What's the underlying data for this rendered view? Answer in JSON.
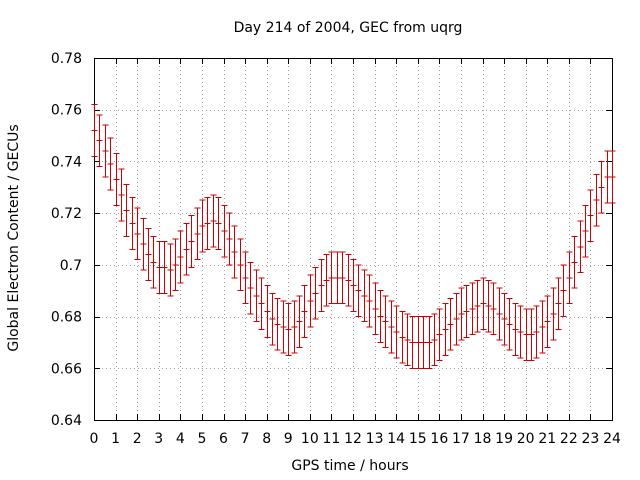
{
  "chart_data": {
    "type": "line",
    "title": "Day 214 of 2004, GEC from uqrg",
    "xlabel": "GPS time / hours",
    "ylabel": "Global Electron Content / GECUs",
    "xlim": [
      0,
      24
    ],
    "ylim": [
      0.64,
      0.78
    ],
    "x_ticks": [
      "0",
      "1",
      "2",
      "3",
      "4",
      "5",
      "6",
      "7",
      "8",
      "9",
      "10",
      "11",
      "12",
      "13",
      "14",
      "15",
      "16",
      "17",
      "18",
      "19",
      "20",
      "21",
      "22",
      "23",
      "24"
    ],
    "y_ticks": [
      "0.64",
      "0.66",
      "0.68",
      "0.7",
      "0.72",
      "0.74",
      "0.76",
      "0.78"
    ],
    "grid": true,
    "series_color": "#cc0000",
    "series": [
      {
        "x": [
          0.0,
          0.25,
          0.5,
          0.75,
          1.0,
          1.25,
          1.5,
          1.75,
          2.0,
          2.25,
          2.5,
          2.75,
          3.0,
          3.25,
          3.5,
          3.75,
          4.0,
          4.25,
          4.5,
          4.75,
          5.0,
          5.25,
          5.5,
          5.75,
          6.0,
          6.25,
          6.5,
          6.75,
          7.0,
          7.25,
          7.5,
          7.75,
          8.0,
          8.25,
          8.5,
          8.75,
          9.0,
          9.25,
          9.5,
          9.75,
          10.0,
          10.25,
          10.5,
          10.75,
          11.0,
          11.25,
          11.5,
          11.75,
          12.0,
          12.25,
          12.5,
          12.75,
          13.0,
          13.25,
          13.5,
          13.75,
          14.0,
          14.25,
          14.5,
          14.75,
          15.0,
          15.25,
          15.5,
          15.75,
          16.0,
          16.25,
          16.5,
          16.75,
          17.0,
          17.25,
          17.5,
          17.75,
          18.0,
          18.25,
          18.5,
          18.75,
          19.0,
          19.25,
          19.5,
          19.75,
          20.0,
          20.25,
          20.5,
          20.75,
          21.0,
          21.25,
          21.5,
          21.75,
          22.0,
          22.25,
          22.5,
          22.75,
          23.0,
          23.25,
          23.5,
          23.75,
          24.0
        ],
        "y": [
          0.752,
          0.748,
          0.744,
          0.739,
          0.733,
          0.727,
          0.721,
          0.716,
          0.712,
          0.708,
          0.704,
          0.701,
          0.699,
          0.699,
          0.698,
          0.7,
          0.703,
          0.706,
          0.709,
          0.712,
          0.715,
          0.716,
          0.717,
          0.716,
          0.713,
          0.71,
          0.705,
          0.7,
          0.695,
          0.691,
          0.688,
          0.685,
          0.682,
          0.679,
          0.677,
          0.676,
          0.675,
          0.676,
          0.678,
          0.682,
          0.686,
          0.689,
          0.692,
          0.694,
          0.695,
          0.695,
          0.695,
          0.694,
          0.692,
          0.69,
          0.688,
          0.686,
          0.683,
          0.68,
          0.678,
          0.676,
          0.674,
          0.672,
          0.671,
          0.67,
          0.67,
          0.67,
          0.67,
          0.671,
          0.673,
          0.675,
          0.677,
          0.679,
          0.681,
          0.682,
          0.683,
          0.684,
          0.685,
          0.684,
          0.683,
          0.681,
          0.679,
          0.677,
          0.675,
          0.674,
          0.673,
          0.673,
          0.674,
          0.676,
          0.678,
          0.681,
          0.685,
          0.69,
          0.695,
          0.701,
          0.707,
          0.713,
          0.719,
          0.725,
          0.73,
          0.734,
          0.734
        ],
        "error": 0.01
      }
    ]
  }
}
